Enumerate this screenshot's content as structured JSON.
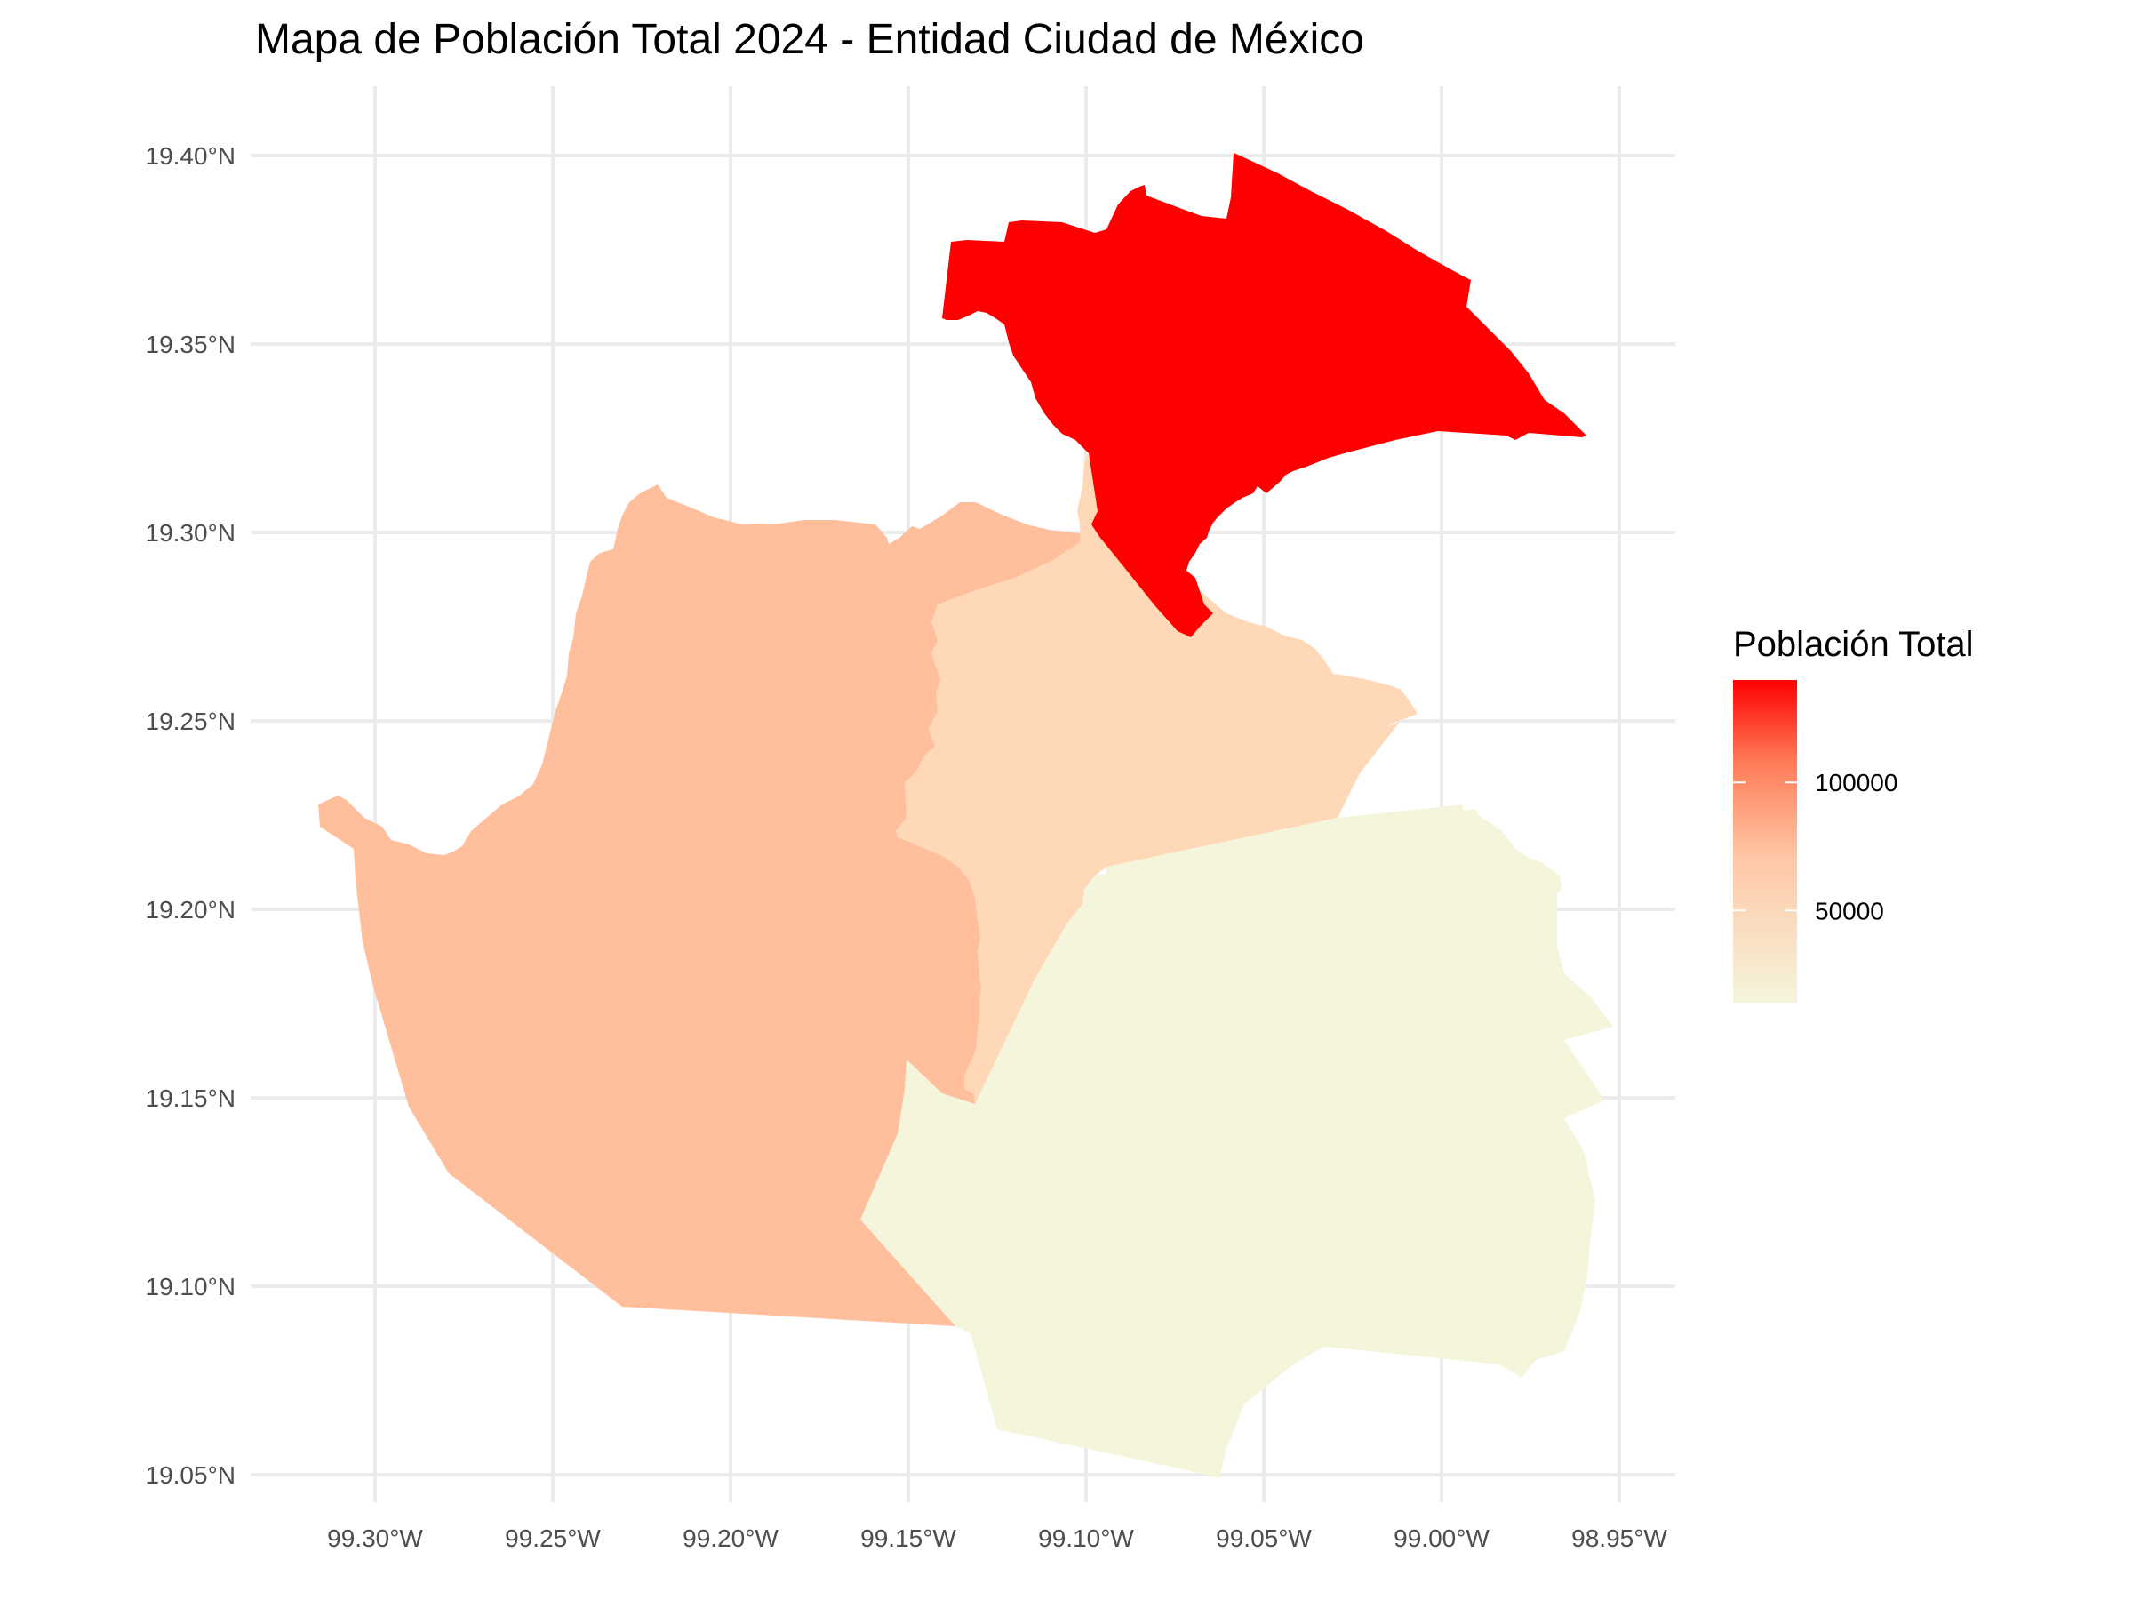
{
  "title": "Mapa de Población Total 2024 - Entidad Ciudad de México",
  "axes": {
    "lon_ticks": [
      "99.30°W",
      "99.25°W",
      "99.20°W",
      "99.15°W",
      "99.10°W",
      "99.05°W",
      "99.00°W",
      "98.95°W"
    ],
    "lat_ticks": [
      "19.40°N",
      "19.35°N",
      "19.30°N",
      "19.25°N",
      "19.20°N",
      "19.15°N",
      "19.10°N",
      "19.05°N"
    ],
    "lon_range": [
      -99.335,
      -98.935
    ],
    "lat_range": [
      19.035,
      19.42
    ],
    "grid": true
  },
  "legend": {
    "title": "Población Total",
    "labels": [
      "100000",
      "50000"
    ],
    "label_values": [
      100000,
      50000
    ],
    "value_range": [
      14000,
      140000
    ],
    "color_low": "#f5f5dc",
    "color_high": "#ff0000",
    "placement": "right"
  },
  "regions": [
    {
      "id": "north-east",
      "fill": "#ff0000",
      "value": 140000
    },
    {
      "id": "west",
      "fill": "#ffbf9c",
      "value": 47000
    },
    {
      "id": "central",
      "fill": "#ffd8b8",
      "value": 34000
    },
    {
      "id": "south-east",
      "fill": "#f5f5dc",
      "value": 14000
    }
  ]
}
